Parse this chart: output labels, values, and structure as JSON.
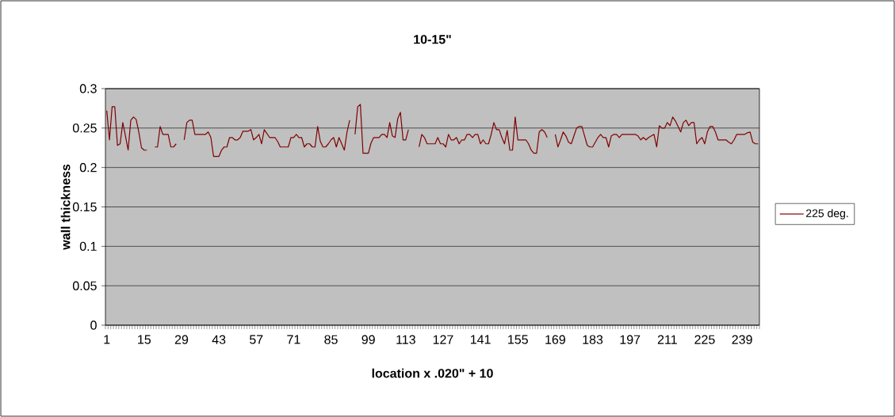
{
  "chart_data": {
    "type": "line",
    "title": "10-15\"",
    "xlabel": "location x .020\" + 10",
    "ylabel": "wall thickness",
    "categories": [
      "1",
      null,
      null,
      null,
      null,
      null,
      null,
      null,
      null,
      null,
      null,
      null,
      null,
      null,
      "15",
      null,
      null,
      null,
      null,
      null,
      null,
      null,
      null,
      null,
      null,
      null,
      null,
      null,
      "29",
      null,
      null,
      null,
      null,
      null,
      null,
      null,
      null,
      null,
      null,
      null,
      null,
      null,
      "43",
      null,
      null,
      null,
      null,
      null,
      null,
      null,
      null,
      null,
      null,
      null,
      null,
      null,
      "57",
      null,
      null,
      null,
      null,
      null,
      null,
      null,
      null,
      null,
      null,
      null,
      null,
      null,
      "71",
      null,
      null,
      null,
      null,
      null,
      null,
      null,
      null,
      null,
      null,
      null,
      null,
      null,
      "85",
      null,
      null,
      null,
      null,
      null,
      null,
      null,
      null,
      null,
      null,
      null,
      null,
      null,
      "99",
      null,
      null,
      null,
      null,
      null,
      null,
      null,
      null,
      null,
      null,
      null,
      null,
      null,
      "113",
      null,
      null,
      null,
      null,
      null,
      null,
      null,
      null,
      null,
      null,
      null,
      null,
      null,
      "127",
      null,
      null,
      null,
      null,
      null,
      null,
      null,
      null,
      null,
      null,
      null,
      null,
      null,
      "141",
      null,
      null,
      null,
      null,
      null,
      null,
      null,
      null,
      null,
      null,
      null,
      null,
      null,
      "155",
      null,
      null,
      null,
      null,
      null,
      null,
      null,
      null,
      null,
      null,
      null,
      null,
      null,
      "169",
      null,
      null,
      null,
      null,
      null,
      null,
      null,
      null,
      null,
      null,
      null,
      null,
      null,
      "183",
      null,
      null,
      null,
      null,
      null,
      null,
      null,
      null,
      null,
      null,
      null,
      null,
      null,
      "197",
      null,
      null,
      null,
      null,
      null,
      null,
      null,
      null,
      null,
      null,
      null,
      null,
      null,
      "211",
      null,
      null,
      null,
      null,
      null,
      null,
      null,
      null,
      null,
      null,
      null,
      null,
      null,
      "225",
      null,
      null,
      null,
      null,
      null,
      null,
      null,
      null,
      null,
      null,
      null,
      null,
      null,
      "239",
      null,
      null,
      null,
      null,
      null,
      null
    ],
    "series": [
      {
        "name": "225 deg.",
        "color": "#800000",
        "values": [
          0.272,
          0.235,
          0.277,
          0.277,
          0.228,
          0.23,
          0.257,
          0.24,
          0.222,
          0.26,
          0.264,
          0.261,
          0.245,
          0.225,
          0.222,
          0.222,
          null,
          null,
          0.226,
          0.226,
          0.252,
          0.242,
          0.242,
          0.242,
          0.226,
          0.226,
          0.23,
          null,
          null,
          0.235,
          0.257,
          0.26,
          0.26,
          0.242,
          0.242,
          0.242,
          0.242,
          0.242,
          0.245,
          0.238,
          0.214,
          0.214,
          0.214,
          0.222,
          0.226,
          0.226,
          0.238,
          0.238,
          0.235,
          0.235,
          0.238,
          0.246,
          0.246,
          0.246,
          0.248,
          0.235,
          0.238,
          0.242,
          0.23,
          0.248,
          0.243,
          0.238,
          0.238,
          0.238,
          0.233,
          0.226,
          0.226,
          0.226,
          0.226,
          0.238,
          0.238,
          0.242,
          0.238,
          0.238,
          0.226,
          0.23,
          0.23,
          0.226,
          0.226,
          0.252,
          0.233,
          0.226,
          0.226,
          0.23,
          0.235,
          0.238,
          0.226,
          0.238,
          0.23,
          0.222,
          0.245,
          0.26,
          null,
          0.242,
          0.277,
          0.28,
          0.218,
          0.218,
          0.218,
          0.231,
          0.238,
          0.238,
          0.238,
          0.242,
          0.242,
          0.238,
          0.257,
          0.24,
          0.238,
          0.262,
          0.27,
          0.235,
          0.235,
          0.248,
          null,
          null,
          null,
          0.226,
          0.242,
          0.238,
          0.23,
          0.23,
          0.23,
          0.23,
          0.238,
          0.23,
          0.23,
          0.226,
          0.242,
          0.235,
          0.235,
          0.238,
          0.23,
          0.235,
          0.235,
          0.242,
          0.242,
          0.238,
          0.242,
          0.242,
          0.23,
          0.235,
          0.23,
          0.23,
          0.242,
          0.257,
          0.248,
          0.248,
          0.238,
          0.23,
          0.247,
          0.222,
          0.222,
          0.264,
          0.235,
          0.235,
          0.235,
          0.235,
          0.23,
          0.222,
          0.218,
          0.218,
          0.245,
          0.248,
          0.245,
          0.238,
          null,
          null,
          0.242,
          0.226,
          0.235,
          0.245,
          0.24,
          0.232,
          0.23,
          0.24,
          0.25,
          0.252,
          0.252,
          0.24,
          0.228,
          0.226,
          0.226,
          0.232,
          0.238,
          0.242,
          0.238,
          0.238,
          0.226,
          0.24,
          0.242,
          0.242,
          0.238,
          0.242,
          0.242,
          0.242,
          0.242,
          0.242,
          0.242,
          0.24,
          0.235,
          0.238,
          0.235,
          0.238,
          0.24,
          0.242,
          0.226,
          0.253,
          0.25,
          0.25,
          0.257,
          0.253,
          0.264,
          0.259,
          0.252,
          0.245,
          0.257,
          0.26,
          0.253,
          0.257,
          0.257,
          0.23,
          0.235,
          0.238,
          0.23,
          0.245,
          0.252,
          0.252,
          0.245,
          0.235,
          0.235,
          0.235,
          0.235,
          0.232,
          0.23,
          0.235,
          0.242,
          0.242,
          0.242,
          0.242,
          0.244,
          0.245,
          0.232,
          0.23,
          0.23
        ]
      }
    ],
    "ylim": [
      0,
      0.3
    ],
    "yticks": [
      0,
      0.05,
      0.1,
      0.15,
      0.2,
      0.25,
      0.3
    ],
    "grid": "y",
    "legend": "right"
  }
}
